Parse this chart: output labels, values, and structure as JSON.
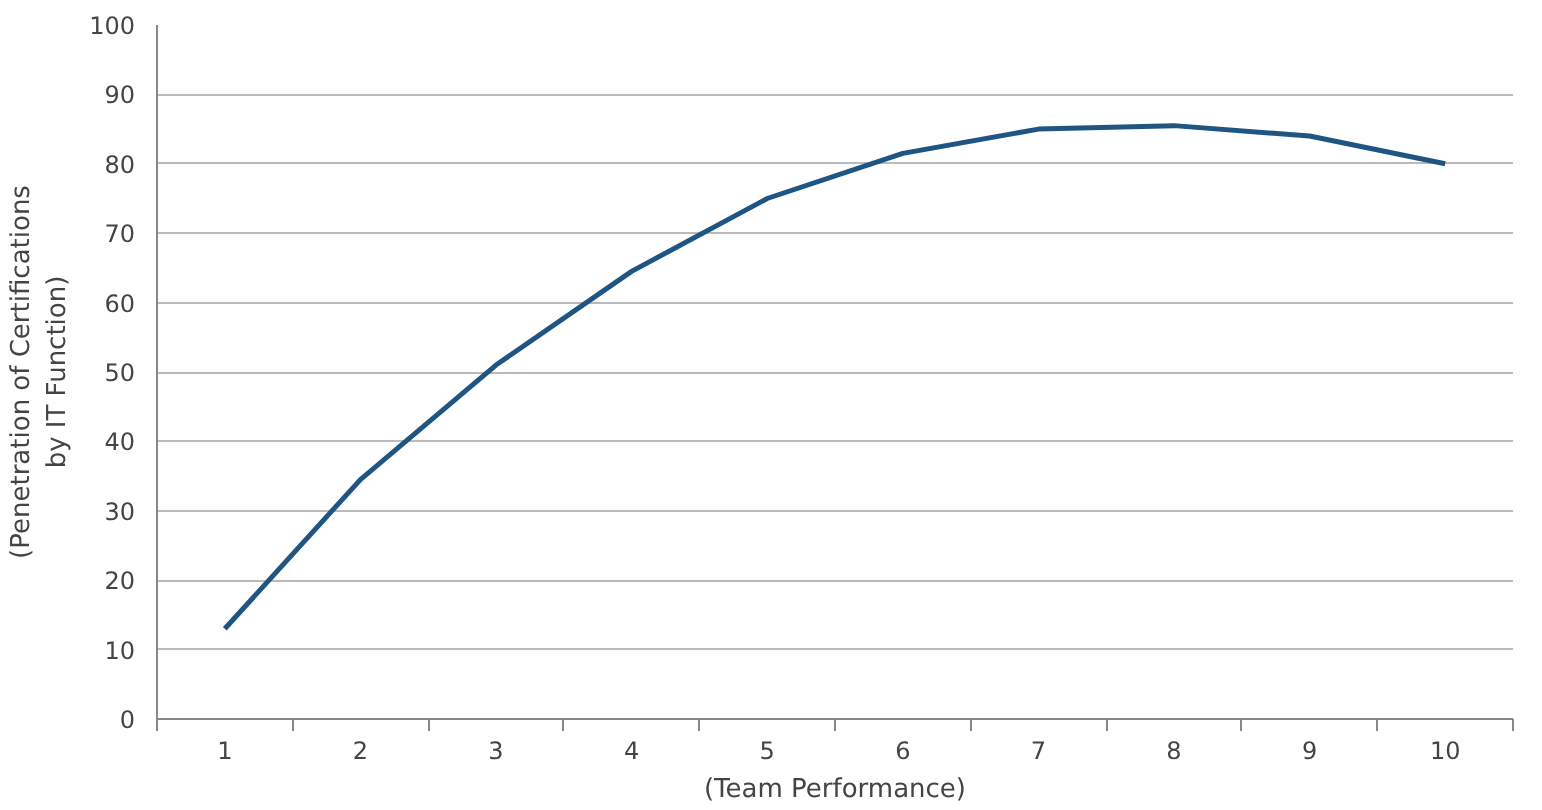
{
  "chart_data": {
    "type": "line",
    "categories": [
      "1",
      "2",
      "3",
      "4",
      "5",
      "6",
      "7",
      "8",
      "9",
      "10"
    ],
    "series": [
      {
        "color": "#1f5582",
        "values": [
          13,
          34.5,
          51,
          64.5,
          75,
          81.5,
          85,
          85.5,
          84,
          80
        ]
      }
    ],
    "xlabel": "(Team Performance)",
    "ylabel": "(Penetration of Certifications\nby IT Function)",
    "ylim": [
      0,
      100
    ],
    "yticks": [
      0,
      10,
      20,
      30,
      40,
      50,
      60,
      70,
      80,
      90,
      100
    ],
    "grid": "y",
    "marker": "none",
    "line_style": "solid"
  }
}
